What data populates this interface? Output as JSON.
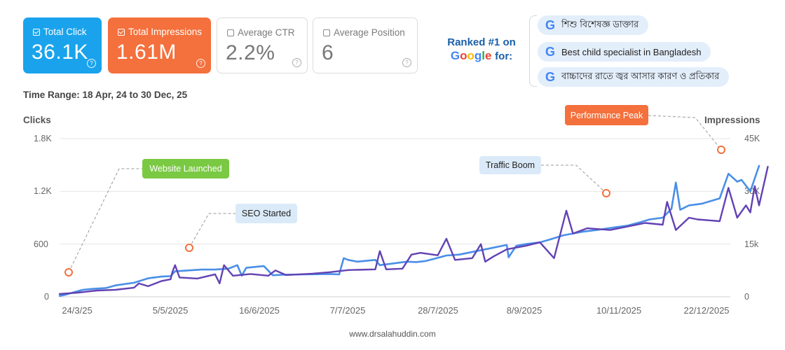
{
  "metrics": [
    {
      "label": "Total Click",
      "value": "36.1K",
      "state": "active",
      "color": "#1aa3ec"
    },
    {
      "label": "Total Impressions",
      "value": "1.61M",
      "state": "active",
      "color": "#f4703c"
    },
    {
      "label": "Average CTR",
      "value": "2.2%",
      "state": "inactive"
    },
    {
      "label": "Average Position",
      "value": "6",
      "state": "inactive"
    }
  ],
  "help_glyph": "?",
  "ranked": {
    "line1": "Ranked #1 on",
    "google_letters": [
      "G",
      "o",
      "o",
      "g",
      "l",
      "e"
    ],
    "google_colors": [
      "#4285F4",
      "#EA4335",
      "#FBBC05",
      "#4285F4",
      "#34A853",
      "#EA4335"
    ],
    "for": "for:",
    "keywords": [
      "শিশু বিশেষজ্ঞ ডাক্তার",
      "Best child specialist in Bangladesh",
      "বাচ্চাদের রাতে জ্বর আসার কারণ ও প্রতিকার"
    ],
    "keyword_icon": "google-g-icon"
  },
  "time_range": "Time Range: 18 Apr, 24 to 30 Dec, 25",
  "footer": "www.drsalahuddin.com",
  "chart_data": {
    "type": "line",
    "ylabel_left": "Clicks",
    "ylabel_right": "Impressions",
    "left_ticks": [
      "1.8K",
      "1.2K",
      "600",
      "0"
    ],
    "right_ticks": [
      "45K",
      "30K",
      "15k",
      "0"
    ],
    "ylim_left": [
      0,
      1800
    ],
    "ylim_right": [
      0,
      45000
    ],
    "x_ticks": [
      "24/3/25",
      "5/5/2025",
      "16/6/2025",
      "7/7/2025",
      "28/7/2025",
      "8/9/2025",
      "10/11/2025",
      "22/12/2025"
    ],
    "grid": true,
    "series": [
      {
        "name": "Clicks",
        "axis": "left",
        "color": "#4a8fe7",
        "points": [
          [
            0,
            10
          ],
          [
            0.05,
            20
          ],
          [
            0.18,
            60
          ],
          [
            0.25,
            80
          ],
          [
            0.35,
            90
          ],
          [
            0.5,
            100
          ],
          [
            0.6,
            130
          ],
          [
            0.8,
            160
          ],
          [
            0.95,
            210
          ],
          [
            1.1,
            230
          ],
          [
            1.2,
            235
          ],
          [
            1.25,
            290
          ],
          [
            1.4,
            300
          ],
          [
            1.55,
            310
          ],
          [
            1.7,
            310
          ],
          [
            1.85,
            320
          ],
          [
            1.95,
            360
          ],
          [
            2.0,
            240
          ],
          [
            2.05,
            330
          ],
          [
            2.15,
            340
          ],
          [
            2.25,
            350
          ],
          [
            2.35,
            245
          ],
          [
            2.45,
            250
          ],
          [
            2.7,
            255
          ],
          [
            3.0,
            260
          ],
          [
            3.1,
            255
          ],
          [
            3.15,
            440
          ],
          [
            3.2,
            420
          ],
          [
            3.3,
            400
          ],
          [
            3.5,
            420
          ],
          [
            3.55,
            360
          ],
          [
            3.7,
            380
          ],
          [
            3.85,
            400
          ],
          [
            3.95,
            395
          ],
          [
            4.05,
            405
          ],
          [
            4.15,
            430
          ],
          [
            4.3,
            470
          ],
          [
            4.45,
            480
          ],
          [
            4.55,
            500
          ],
          [
            4.65,
            520
          ],
          [
            4.75,
            540
          ],
          [
            4.85,
            560
          ],
          [
            5.0,
            590
          ],
          [
            5.02,
            450
          ],
          [
            5.1,
            580
          ],
          [
            5.2,
            600
          ],
          [
            5.35,
            620
          ],
          [
            5.45,
            650
          ],
          [
            5.6,
            700
          ],
          [
            5.8,
            740
          ],
          [
            5.95,
            760
          ],
          [
            6.15,
            790
          ],
          [
            6.3,
            810
          ],
          [
            6.45,
            850
          ],
          [
            6.55,
            880
          ],
          [
            6.7,
            900
          ],
          [
            6.8,
            1000
          ],
          [
            6.85,
            1300
          ],
          [
            6.9,
            990
          ],
          [
            7.0,
            1040
          ],
          [
            7.15,
            1060
          ],
          [
            7.25,
            1090
          ],
          [
            7.35,
            1120
          ],
          [
            7.45,
            1400
          ],
          [
            7.55,
            1310
          ],
          [
            7.6,
            1330
          ],
          [
            7.7,
            1200
          ],
          [
            7.8,
            1490
          ]
        ]
      },
      {
        "name": "Impressions",
        "axis": "right",
        "color": "#6242b3",
        "points": [
          [
            0,
            800
          ],
          [
            0.2,
            1200
          ],
          [
            0.4,
            1800
          ],
          [
            0.6,
            2000
          ],
          [
            0.8,
            2600
          ],
          [
            0.85,
            3800
          ],
          [
            0.95,
            3000
          ],
          [
            1.1,
            4500
          ],
          [
            1.2,
            5000
          ],
          [
            1.22,
            7000
          ],
          [
            1.25,
            9000
          ],
          [
            1.3,
            5500
          ],
          [
            1.5,
            5200
          ],
          [
            1.6,
            5800
          ],
          [
            1.7,
            6400
          ],
          [
            1.75,
            3800
          ],
          [
            1.8,
            9000
          ],
          [
            1.9,
            6000
          ],
          [
            2.1,
            6500
          ],
          [
            2.3,
            6000
          ],
          [
            2.38,
            7500
          ],
          [
            2.5,
            6200
          ],
          [
            2.8,
            6600
          ],
          [
            3.0,
            7000
          ],
          [
            3.2,
            7600
          ],
          [
            3.5,
            7800
          ],
          [
            3.55,
            13000
          ],
          [
            3.62,
            7800
          ],
          [
            3.8,
            8000
          ],
          [
            3.9,
            12000
          ],
          [
            4.0,
            12500
          ],
          [
            4.2,
            11800
          ],
          [
            4.3,
            16500
          ],
          [
            4.4,
            10500
          ],
          [
            4.6,
            11000
          ],
          [
            4.7,
            15000
          ],
          [
            4.75,
            10000
          ],
          [
            4.85,
            11500
          ],
          [
            5.0,
            13500
          ],
          [
            5.2,
            14500
          ],
          [
            5.35,
            15500
          ],
          [
            5.5,
            11000
          ],
          [
            5.63,
            24500
          ],
          [
            5.7,
            18000
          ],
          [
            5.85,
            19500
          ],
          [
            6.1,
            19000
          ],
          [
            6.3,
            20000
          ],
          [
            6.5,
            21000
          ],
          [
            6.7,
            20500
          ],
          [
            6.75,
            27000
          ],
          [
            6.85,
            19000
          ],
          [
            7.0,
            22500
          ],
          [
            7.1,
            22000
          ],
          [
            7.35,
            21500
          ],
          [
            7.45,
            31000
          ],
          [
            7.55,
            22500
          ],
          [
            7.65,
            26000
          ],
          [
            7.7,
            24000
          ],
          [
            7.75,
            31500
          ],
          [
            7.8,
            26000
          ],
          [
            7.9,
            37000
          ]
        ]
      }
    ],
    "annotations": [
      "Website Launched",
      "SEO Started",
      "Traffic Boom",
      "Performance Peak"
    ]
  }
}
